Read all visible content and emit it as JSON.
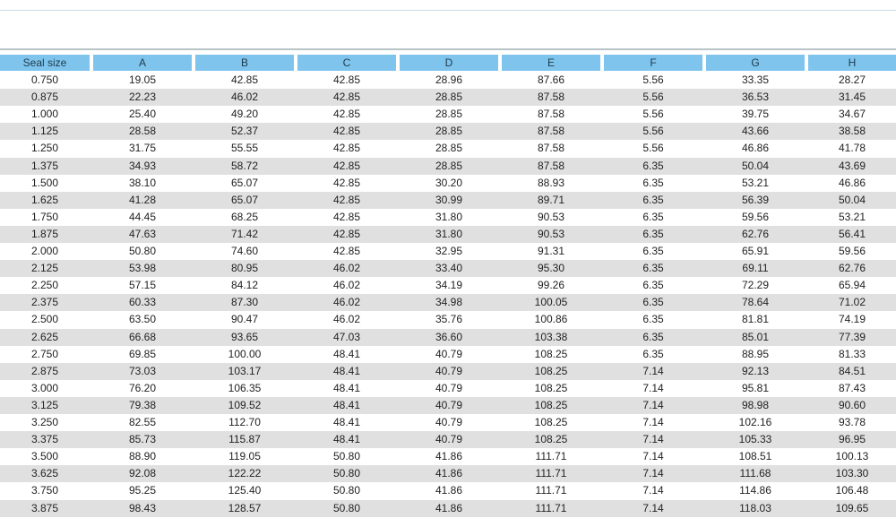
{
  "table": {
    "header": [
      "Seal size",
      "A",
      "B",
      "C",
      "D",
      "E",
      "F",
      "G",
      "H"
    ],
    "rows": [
      [
        "0.750",
        "19.05",
        "42.85",
        "42.85",
        "28.96",
        "87.66",
        "5.56",
        "33.35",
        "28.27"
      ],
      [
        "0.875",
        "22.23",
        "46.02",
        "42.85",
        "28.85",
        "87.58",
        "5.56",
        "36.53",
        "31.45"
      ],
      [
        "1.000",
        "25.40",
        "49.20",
        "42.85",
        "28.85",
        "87.58",
        "5.56",
        "39.75",
        "34.67"
      ],
      [
        "1.125",
        "28.58",
        "52.37",
        "42.85",
        "28.85",
        "87.58",
        "5.56",
        "43.66",
        "38.58"
      ],
      [
        "1.250",
        "31.75",
        "55.55",
        "42.85",
        "28.85",
        "87.58",
        "5.56",
        "46.86",
        "41.78"
      ],
      [
        "1.375",
        "34.93",
        "58.72",
        "42.85",
        "28.85",
        "87.58",
        "6.35",
        "50.04",
        "43.69"
      ],
      [
        "1.500",
        "38.10",
        "65.07",
        "42.85",
        "30.20",
        "88.93",
        "6.35",
        "53.21",
        "46.86"
      ],
      [
        "1.625",
        "41.28",
        "65.07",
        "42.85",
        "30.99",
        "89.71",
        "6.35",
        "56.39",
        "50.04"
      ],
      [
        "1.750",
        "44.45",
        "68.25",
        "42.85",
        "31.80",
        "90.53",
        "6.35",
        "59.56",
        "53.21"
      ],
      [
        "1.875",
        "47.63",
        "71.42",
        "42.85",
        "31.80",
        "90.53",
        "6.35",
        "62.76",
        "56.41"
      ],
      [
        "2.000",
        "50.80",
        "74.60",
        "42.85",
        "32.95",
        "91.31",
        "6.35",
        "65.91",
        "59.56"
      ],
      [
        "2.125",
        "53.98",
        "80.95",
        "46.02",
        "33.40",
        "95.30",
        "6.35",
        "69.11",
        "62.76"
      ],
      [
        "2.250",
        "57.15",
        "84.12",
        "46.02",
        "34.19",
        "99.26",
        "6.35",
        "72.29",
        "65.94"
      ],
      [
        "2.375",
        "60.33",
        "87.30",
        "46.02",
        "34.98",
        "100.05",
        "6.35",
        "78.64",
        "71.02"
      ],
      [
        "2.500",
        "63.50",
        "90.47",
        "46.02",
        "35.76",
        "100.86",
        "6.35",
        "81.81",
        "74.19"
      ],
      [
        "2.625",
        "66.68",
        "93.65",
        "47.03",
        "36.60",
        "103.38",
        "6.35",
        "85.01",
        "77.39"
      ],
      [
        "2.750",
        "69.85",
        "100.00",
        "48.41",
        "40.79",
        "108.25",
        "6.35",
        "88.95",
        "81.33"
      ],
      [
        "2.875",
        "73.03",
        "103.17",
        "48.41",
        "40.79",
        "108.25",
        "7.14",
        "92.13",
        "84.51"
      ],
      [
        "3.000",
        "76.20",
        "106.35",
        "48.41",
        "40.79",
        "108.25",
        "7.14",
        "95.81",
        "87.43"
      ],
      [
        "3.125",
        "79.38",
        "109.52",
        "48.41",
        "40.79",
        "108.25",
        "7.14",
        "98.98",
        "90.60"
      ],
      [
        "3.250",
        "82.55",
        "112.70",
        "48.41",
        "40.79",
        "108.25",
        "7.14",
        "102.16",
        "93.78"
      ],
      [
        "3.375",
        "85.73",
        "115.87",
        "48.41",
        "40.79",
        "108.25",
        "7.14",
        "105.33",
        "96.95"
      ],
      [
        "3.500",
        "88.90",
        "119.05",
        "50.80",
        "41.86",
        "111.71",
        "7.14",
        "108.51",
        "100.13"
      ],
      [
        "3.625",
        "92.08",
        "122.22",
        "50.80",
        "41.86",
        "111.71",
        "7.14",
        "111.68",
        "103.30"
      ],
      [
        "3.750",
        "95.25",
        "125.40",
        "50.80",
        "41.86",
        "111.71",
        "7.14",
        "114.86",
        "106.48"
      ],
      [
        "3.875",
        "98.43",
        "128.57",
        "50.80",
        "41.86",
        "111.71",
        "7.14",
        "118.03",
        "109.65"
      ]
    ]
  }
}
